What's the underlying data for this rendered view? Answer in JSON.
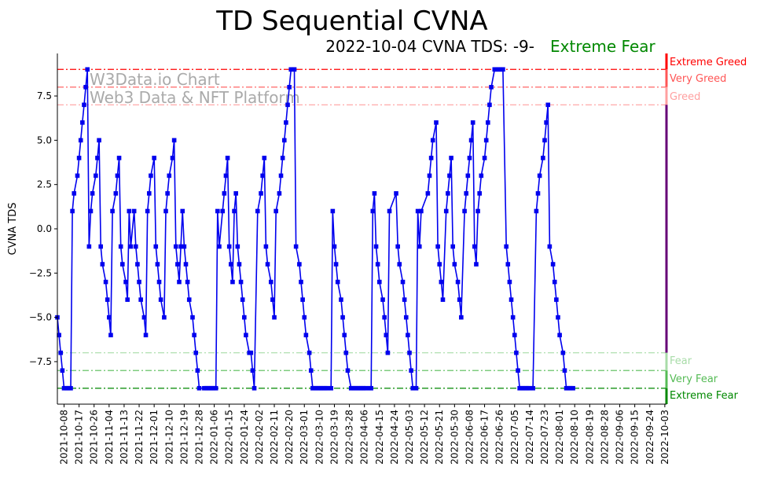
{
  "chart_data": {
    "type": "line",
    "title": "TD Sequential CVNA",
    "subtitle": "2022-10-04 CVNA TDS: -9-",
    "sentiment": "Extreme Fear",
    "xlabel": "",
    "ylabel": "CVNA TDS",
    "ylim": [
      -9.9,
      9.9
    ],
    "yticks": [
      7.5,
      5.0,
      2.5,
      0.0,
      -2.5,
      -5.0,
      -7.5
    ],
    "ytick_labels": [
      "7.5",
      "5.0",
      "2.5",
      "0.0",
      "−2.5",
      "−5.0",
      "−7.5"
    ],
    "xtick_labels": [
      "2021-10-08",
      "2021-10-17",
      "2021-10-26",
      "2021-11-04",
      "2021-11-13",
      "2021-11-22",
      "2021-12-01",
      "2021-12-10",
      "2021-12-19",
      "2021-12-28",
      "2022-01-06",
      "2022-01-15",
      "2022-01-24",
      "2022-02-02",
      "2022-02-11",
      "2022-02-20",
      "2022-03-01",
      "2022-03-10",
      "2022-03-19",
      "2022-03-28",
      "2022-04-06",
      "2022-04-15",
      "2022-04-24",
      "2022-05-03",
      "2022-05-12",
      "2022-05-21",
      "2022-05-30",
      "2022-06-08",
      "2022-06-17",
      "2022-06-26",
      "2022-07-05",
      "2022-07-14",
      "2022-07-23",
      "2022-08-01",
      "2022-08-10",
      "2022-08-19",
      "2022-08-28",
      "2022-09-06",
      "2022-09-15",
      "2022-09-24",
      "2022-10-03"
    ],
    "xtick_days": [
      4,
      13,
      22,
      31,
      40,
      49,
      58,
      67,
      76,
      85,
      94,
      103,
      112,
      121,
      130,
      139,
      148,
      157,
      166,
      175,
      184,
      193,
      202,
      211,
      220,
      229,
      238,
      247,
      256,
      265,
      274,
      283,
      292,
      301,
      310,
      319,
      328,
      337,
      346,
      355,
      364
    ],
    "xlim": [
      0,
      365
    ],
    "series": [
      {
        "name": "CVNA TDS",
        "color": "#0000ee",
        "points": [
          [
            0,
            -5
          ],
          [
            1,
            -6
          ],
          [
            2,
            -7
          ],
          [
            3,
            -8
          ],
          [
            4,
            -9
          ],
          [
            5,
            -9
          ],
          [
            6,
            -9
          ],
          [
            7,
            -9
          ],
          [
            8,
            -9
          ],
          [
            9,
            1
          ],
          [
            10,
            2
          ],
          [
            12,
            3
          ],
          [
            13,
            4
          ],
          [
            14,
            5
          ],
          [
            15,
            6
          ],
          [
            16,
            7
          ],
          [
            17,
            8
          ],
          [
            18,
            9
          ],
          [
            19,
            -1
          ],
          [
            20,
            1
          ],
          [
            21,
            2
          ],
          [
            23,
            3
          ],
          [
            24,
            4
          ],
          [
            25,
            5
          ],
          [
            26,
            -1
          ],
          [
            27,
            -2
          ],
          [
            29,
            -3
          ],
          [
            30,
            -4
          ],
          [
            31,
            -5
          ],
          [
            32,
            -6
          ],
          [
            33,
            1
          ],
          [
            35,
            2
          ],
          [
            36,
            3
          ],
          [
            37,
            4
          ],
          [
            38,
            -1
          ],
          [
            39,
            -2
          ],
          [
            41,
            -3
          ],
          [
            42,
            -4
          ],
          [
            43,
            1
          ],
          [
            44,
            -1
          ],
          [
            46,
            1
          ],
          [
            47,
            -1
          ],
          [
            48,
            -2
          ],
          [
            49,
            -3
          ],
          [
            50,
            -4
          ],
          [
            52,
            -5
          ],
          [
            53,
            -6
          ],
          [
            54,
            1
          ],
          [
            55,
            2
          ],
          [
            56,
            3
          ],
          [
            58,
            4
          ],
          [
            59,
            -1
          ],
          [
            60,
            -2
          ],
          [
            61,
            -3
          ],
          [
            62,
            -4
          ],
          [
            64,
            -5
          ],
          [
            65,
            1
          ],
          [
            66,
            2
          ],
          [
            67,
            3
          ],
          [
            69,
            4
          ],
          [
            70,
            5
          ],
          [
            71,
            -1
          ],
          [
            72,
            -2
          ],
          [
            73,
            -3
          ],
          [
            74,
            -1
          ],
          [
            75,
            1
          ],
          [
            76,
            -1
          ],
          [
            77,
            -2
          ],
          [
            78,
            -3
          ],
          [
            79,
            -4
          ],
          [
            81,
            -5
          ],
          [
            82,
            -6
          ],
          [
            83,
            -7
          ],
          [
            84,
            -8
          ],
          [
            85,
            -9
          ],
          [
            88,
            -9
          ],
          [
            89,
            -9
          ],
          [
            90,
            -9
          ],
          [
            91,
            -9
          ],
          [
            92,
            -9
          ],
          [
            93,
            -9
          ],
          [
            94,
            -9
          ],
          [
            95,
            -9
          ],
          [
            96,
            1
          ],
          [
            97,
            -1
          ],
          [
            99,
            1
          ],
          [
            100,
            2
          ],
          [
            101,
            3
          ],
          [
            102,
            4
          ],
          [
            103,
            -1
          ],
          [
            104,
            -2
          ],
          [
            105,
            -3
          ],
          [
            106,
            1
          ],
          [
            107,
            2
          ],
          [
            108,
            -1
          ],
          [
            109,
            -2
          ],
          [
            110,
            -3
          ],
          [
            111,
            -4
          ],
          [
            112,
            -5
          ],
          [
            113,
            -6
          ],
          [
            115,
            -7
          ],
          [
            116,
            -7
          ],
          [
            117,
            -8
          ],
          [
            118,
            -9
          ],
          [
            120,
            1
          ],
          [
            122,
            2
          ],
          [
            123,
            3
          ],
          [
            124,
            4
          ],
          [
            125,
            -1
          ],
          [
            126,
            -2
          ],
          [
            128,
            -3
          ],
          [
            129,
            -4
          ],
          [
            130,
            -5
          ],
          [
            131,
            1
          ],
          [
            133,
            2
          ],
          [
            134,
            3
          ],
          [
            135,
            4
          ],
          [
            136,
            5
          ],
          [
            137,
            6
          ],
          [
            138,
            7
          ],
          [
            139,
            8
          ],
          [
            140,
            9
          ],
          [
            141,
            9
          ],
          [
            142,
            9
          ],
          [
            143,
            -1
          ],
          [
            145,
            -2
          ],
          [
            146,
            -3
          ],
          [
            147,
            -4
          ],
          [
            148,
            -5
          ],
          [
            149,
            -6
          ],
          [
            151,
            -7
          ],
          [
            152,
            -8
          ],
          [
            153,
            -9
          ],
          [
            154,
            -9
          ],
          [
            155,
            -9
          ],
          [
            156,
            -9
          ],
          [
            157,
            -9
          ],
          [
            158,
            -9
          ],
          [
            159,
            -9
          ],
          [
            160,
            -9
          ],
          [
            161,
            -9
          ],
          [
            162,
            -9
          ],
          [
            164,
            -9
          ],
          [
            165,
            1
          ],
          [
            166,
            -1
          ],
          [
            167,
            -2
          ],
          [
            168,
            -3
          ],
          [
            170,
            -4
          ],
          [
            171,
            -5
          ],
          [
            172,
            -6
          ],
          [
            173,
            -7
          ],
          [
            174,
            -8
          ],
          [
            176,
            -9
          ],
          [
            177,
            -9
          ],
          [
            178,
            -9
          ],
          [
            179,
            -9
          ],
          [
            180,
            -9
          ],
          [
            181,
            -9
          ],
          [
            182,
            -9
          ],
          [
            183,
            -9
          ],
          [
            184,
            -9
          ],
          [
            185,
            -9
          ],
          [
            187,
            -9
          ],
          [
            188,
            -9
          ],
          [
            189,
            1
          ],
          [
            190,
            2
          ],
          [
            191,
            -1
          ],
          [
            192,
            -2
          ],
          [
            193,
            -3
          ],
          [
            195,
            -4
          ],
          [
            196,
            -5
          ],
          [
            197,
            -6
          ],
          [
            198,
            -7
          ],
          [
            199,
            1
          ],
          [
            203,
            2
          ],
          [
            204,
            -1
          ],
          [
            205,
            -2
          ],
          [
            207,
            -3
          ],
          [
            208,
            -4
          ],
          [
            209,
            -5
          ],
          [
            210,
            -6
          ],
          [
            211,
            -7
          ],
          [
            212,
            -8
          ],
          [
            213,
            -9
          ],
          [
            215,
            -9
          ],
          [
            216,
            1
          ],
          [
            217,
            -1
          ],
          [
            218,
            1
          ],
          [
            222,
            2
          ],
          [
            223,
            3
          ],
          [
            224,
            4
          ],
          [
            225,
            5
          ],
          [
            227,
            6
          ],
          [
            228,
            -1
          ],
          [
            229,
            -2
          ],
          [
            230,
            -3
          ],
          [
            231,
            -4
          ],
          [
            233,
            1
          ],
          [
            234,
            2
          ],
          [
            235,
            3
          ],
          [
            236,
            4
          ],
          [
            237,
            -1
          ],
          [
            238,
            -2
          ],
          [
            240,
            -3
          ],
          [
            241,
            -4
          ],
          [
            242,
            -5
          ],
          [
            244,
            1
          ],
          [
            245,
            2
          ],
          [
            246,
            3
          ],
          [
            247,
            4
          ],
          [
            248,
            5
          ],
          [
            249,
            6
          ],
          [
            250,
            -1
          ],
          [
            251,
            -2
          ],
          [
            252,
            1
          ],
          [
            253,
            2
          ],
          [
            254,
            3
          ],
          [
            256,
            4
          ],
          [
            257,
            5
          ],
          [
            258,
            6
          ],
          [
            259,
            7
          ],
          [
            260,
            8
          ],
          [
            262,
            9
          ],
          [
            263,
            9
          ],
          [
            264,
            9
          ],
          [
            265,
            9
          ],
          [
            266,
            9
          ],
          [
            267,
            9
          ],
          [
            269,
            -1
          ],
          [
            270,
            -2
          ],
          [
            271,
            -3
          ],
          [
            272,
            -4
          ],
          [
            273,
            -5
          ],
          [
            274,
            -6
          ],
          [
            275,
            -7
          ],
          [
            276,
            -8
          ],
          [
            277,
            -9
          ],
          [
            278,
            -9
          ],
          [
            279,
            -9
          ],
          [
            280,
            -9
          ],
          [
            281,
            -9
          ],
          [
            282,
            -9
          ],
          [
            283,
            -9
          ],
          [
            285,
            -9
          ],
          [
            287,
            1
          ],
          [
            288,
            2
          ],
          [
            289,
            3
          ],
          [
            291,
            4
          ],
          [
            292,
            5
          ],
          [
            293,
            6
          ],
          [
            294,
            7
          ],
          [
            295,
            -1
          ],
          [
            297,
            -2
          ],
          [
            298,
            -3
          ],
          [
            299,
            -4
          ],
          [
            300,
            -5
          ],
          [
            301,
            -6
          ],
          [
            303,
            -7
          ],
          [
            304,
            -8
          ],
          [
            305,
            -9
          ],
          [
            306,
            -9
          ],
          [
            307,
            -9
          ],
          [
            308,
            -9
          ],
          [
            309,
            -9
          ]
        ]
      }
    ],
    "reference_lines": [
      {
        "name": "extreme-greed",
        "label": "Extreme Greed",
        "y": 9,
        "color": "#ff0000",
        "style": "dashdot"
      },
      {
        "name": "very-greed",
        "label": "Very Greed",
        "y": 8,
        "color": "#ff5555",
        "style": "dashdot"
      },
      {
        "name": "greed",
        "label": "Greed",
        "y": 7,
        "color": "#ffa0a0",
        "style": "dashdot"
      },
      {
        "name": "fear",
        "label": "Fear",
        "y": -7,
        "color": "#a8dca8",
        "style": "dashdot"
      },
      {
        "name": "very-fear",
        "label": "Very Fear",
        "y": -8,
        "color": "#55bb55",
        "style": "dashdot"
      },
      {
        "name": "extreme-fear",
        "label": "Extreme Fear",
        "y": -9,
        "color": "#008800",
        "style": "dashdot"
      }
    ],
    "watermark": [
      "W3Data.io Chart",
      "Web3 Data & NFT Platform"
    ],
    "colors": {
      "title": "#000000",
      "sentiment": "#008800",
      "line": "#0000ee",
      "watermark": "#aaaaaa",
      "bar_purple": "#660077"
    }
  }
}
